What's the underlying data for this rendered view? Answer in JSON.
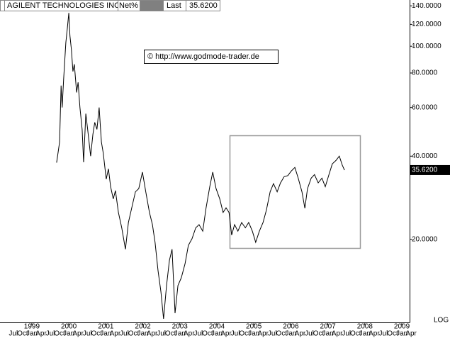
{
  "chart_data": {
    "type": "line",
    "header": {
      "name": "AGILENT TECHNOLOGIES INC",
      "change_label": "Net%",
      "last_label": "Last",
      "last": "35.6200"
    },
    "copyright": "© http://www.godmode-trader.de",
    "scale_label": "LOG",
    "log_scale": true,
    "grid": false,
    "color": "#000000",
    "xlim": [
      1998.14,
      2009.21
    ],
    "ylim": [
      10,
      147
    ],
    "xticks": [
      1999,
      2000,
      2001,
      2002,
      2003,
      2004,
      2005,
      2006,
      2007,
      2008,
      2009
    ],
    "month_ticks": [
      {
        "value": 1998.5,
        "label": "Jul"
      },
      {
        "value": 1998.75,
        "label": "Oct"
      },
      {
        "value": 1999,
        "label": "Jan"
      },
      {
        "value": 1999.25,
        "label": "Apr"
      },
      {
        "value": 1999.5,
        "label": "Jul"
      },
      {
        "value": 1999.75,
        "label": "Oct"
      },
      {
        "value": 2000,
        "label": "Jan"
      },
      {
        "value": 2000.25,
        "label": "Apr"
      },
      {
        "value": 2000.5,
        "label": "Jul"
      },
      {
        "value": 2000.75,
        "label": "Oct"
      },
      {
        "value": 2001,
        "label": "Jan"
      },
      {
        "value": 2001.25,
        "label": "Apr"
      },
      {
        "value": 2001.5,
        "label": "Jul"
      },
      {
        "value": 2001.75,
        "label": "Oct"
      },
      {
        "value": 2002,
        "label": "Jan"
      },
      {
        "value": 2002.25,
        "label": "Apr"
      },
      {
        "value": 2002.5,
        "label": "Jul"
      },
      {
        "value": 2002.75,
        "label": "Oct"
      },
      {
        "value": 2003,
        "label": "Jan"
      },
      {
        "value": 2003.25,
        "label": "Apr"
      },
      {
        "value": 2003.5,
        "label": "Jul"
      },
      {
        "value": 2003.75,
        "label": "Oct"
      },
      {
        "value": 2004,
        "label": "Jan"
      },
      {
        "value": 2004.25,
        "label": "Apr"
      },
      {
        "value": 2004.5,
        "label": "Jul"
      },
      {
        "value": 2004.75,
        "label": "Oct"
      },
      {
        "value": 2005,
        "label": "Jan"
      },
      {
        "value": 2005.25,
        "label": "Apr"
      },
      {
        "value": 2005.5,
        "label": "Jul"
      },
      {
        "value": 2005.75,
        "label": "Oct"
      },
      {
        "value": 2006,
        "label": "Jan"
      },
      {
        "value": 2006.25,
        "label": "Apr"
      },
      {
        "value": 2006.5,
        "label": "Jul"
      },
      {
        "value": 2006.75,
        "label": "Oct"
      },
      {
        "value": 2007,
        "label": "Jan"
      },
      {
        "value": 2007.25,
        "label": "Apr"
      },
      {
        "value": 2007.5,
        "label": "Jul"
      },
      {
        "value": 2007.75,
        "label": "Oct"
      },
      {
        "value": 2008,
        "label": "Jan"
      },
      {
        "value": 2008.25,
        "label": "Apr"
      },
      {
        "value": 2008.5,
        "label": "Jul"
      },
      {
        "value": 2008.75,
        "label": "Oct"
      },
      {
        "value": 2009,
        "label": "Jan"
      },
      {
        "value": 2009.25,
        "label": "Apr"
      }
    ],
    "yticks": [
      {
        "value": 20,
        "label": "20.0000"
      },
      {
        "value": 40,
        "label": "40.0000"
      },
      {
        "value": 60,
        "label": "60.0000"
      },
      {
        "value": 80,
        "label": "80.0000"
      },
      {
        "value": 100,
        "label": "100.0000"
      },
      {
        "value": 120,
        "label": "120.0000"
      },
      {
        "value": 140,
        "label": "140.0000"
      }
    ],
    "x": [
      1999.67,
      1999.75,
      1999.79,
      1999.82,
      1999.86,
      1999.92,
      1999.96,
      2000.0,
      2000.03,
      2000.07,
      2000.11,
      2000.15,
      2000.21,
      2000.25,
      2000.3,
      2000.36,
      2000.4,
      2000.46,
      2000.51,
      2000.59,
      2000.65,
      2000.7,
      2000.76,
      2000.82,
      2000.88,
      2000.93,
      2001.01,
      2001.07,
      2001.13,
      2001.2,
      2001.26,
      2001.34,
      2001.43,
      2001.53,
      2001.61,
      2001.7,
      2001.8,
      2001.89,
      2001.99,
      2002.08,
      2002.18,
      2002.26,
      2002.33,
      2002.41,
      2002.49,
      2002.56,
      2002.64,
      2002.72,
      2002.79,
      2002.87,
      2002.95,
      2003.04,
      2003.14,
      2003.23,
      2003.33,
      2003.43,
      2003.52,
      2003.62,
      2003.71,
      2003.81,
      2003.89,
      2003.98,
      2004.08,
      2004.17,
      2004.25,
      2004.33,
      2004.4,
      2004.48,
      2004.57,
      2004.67,
      2004.77,
      2004.86,
      2004.96,
      2005.05,
      2005.15,
      2005.25,
      2005.34,
      2005.44,
      2005.53,
      2005.63,
      2005.72,
      2005.82,
      2005.92,
      2006.01,
      2006.11,
      2006.2,
      2006.3,
      2006.38,
      2006.45,
      2006.55,
      2006.64,
      2006.74,
      2006.84,
      2006.93,
      2007.03,
      2007.12,
      2007.22,
      2007.31,
      2007.39,
      2007.45
    ],
    "values": [
      37.9,
      45,
      72,
      60,
      76,
      103,
      116,
      132,
      109,
      97,
      81,
      86,
      68,
      74,
      60,
      50,
      38,
      57,
      50,
      40,
      48,
      53,
      50,
      60,
      45,
      41,
      33,
      36,
      31,
      28,
      30,
      25,
      22,
      18.4,
      23,
      26,
      29.7,
      30.5,
      35,
      29.7,
      25,
      22.6,
      19.5,
      15.4,
      12.9,
      10.3,
      13.6,
      16.8,
      18.4,
      10.8,
      13.6,
      14.5,
      16.3,
      19,
      20.1,
      22,
      22.6,
      21.4,
      26,
      31,
      35,
      30.5,
      28,
      25,
      26,
      25,
      20.7,
      22.6,
      21.4,
      23,
      22,
      23,
      21.4,
      19.5,
      21.4,
      23,
      25.5,
      29.7,
      31.8,
      29.7,
      32,
      33.7,
      34,
      35.3,
      36.4,
      33.3,
      29.7,
      25.9,
      30.5,
      33.3,
      34.3,
      32,
      33.3,
      31,
      34.3,
      37.5,
      38.6,
      40,
      37.1,
      35.62
    ]
  }
}
